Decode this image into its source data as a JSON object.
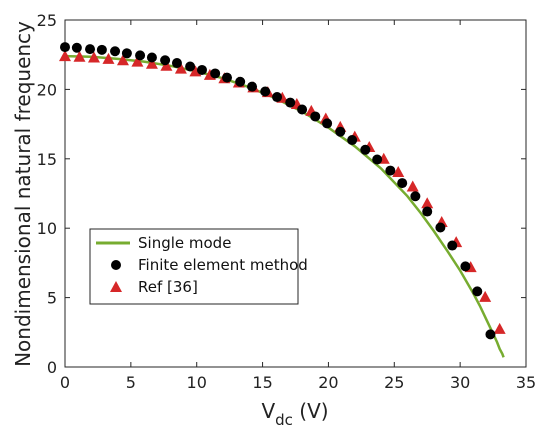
{
  "chart_data": {
    "type": "line",
    "xlabel": "V",
    "xlabel_sub": "dc",
    "xlabel_unit": " (V)",
    "ylabel": "Nondimensional natural frequency",
    "xlim": [
      0,
      35
    ],
    "ylim": [
      0,
      25
    ],
    "xticks": [
      0,
      5,
      10,
      15,
      20,
      25,
      30,
      35
    ],
    "yticks": [
      0,
      5,
      10,
      15,
      20,
      25
    ],
    "grid": false,
    "legend_position": "lower-left",
    "colors": {
      "single_mode": "#77AC30",
      "fem": "#000000",
      "ref": "#D62728"
    },
    "series": [
      {
        "name": "Single mode",
        "style": "line",
        "x": [
          0,
          2,
          4,
          6,
          8,
          10,
          12,
          14,
          16,
          18,
          20,
          22,
          24,
          26,
          27,
          28,
          29,
          30,
          31,
          31.5,
          32,
          32.5,
          32.8,
          33.0,
          33.2,
          33.3
        ],
        "y": [
          22.4,
          22.35,
          22.2,
          22.0,
          21.7,
          21.3,
          20.8,
          20.15,
          19.35,
          18.4,
          17.25,
          15.9,
          14.3,
          12.3,
          11.1,
          9.8,
          8.4,
          6.95,
          5.3,
          4.4,
          3.4,
          2.4,
          1.8,
          1.3,
          0.95,
          0.7
        ]
      },
      {
        "name": "Finite element method",
        "style": "circle",
        "x": [
          0,
          0.9,
          1.9,
          2.8,
          3.8,
          4.7,
          5.7,
          6.6,
          7.6,
          8.5,
          9.5,
          10.4,
          11.4,
          12.3,
          13.3,
          14.2,
          15.2,
          16.1,
          17.1,
          18.0,
          19.0,
          19.9,
          20.9,
          21.8,
          22.8,
          23.7,
          24.7,
          25.6,
          26.6,
          27.5,
          28.5,
          29.4,
          30.4,
          31.3,
          32.3
        ],
        "y": [
          23.05,
          23.0,
          22.9,
          22.85,
          22.75,
          22.6,
          22.45,
          22.3,
          22.1,
          21.9,
          21.65,
          21.4,
          21.15,
          20.85,
          20.55,
          20.2,
          19.85,
          19.45,
          19.05,
          18.55,
          18.05,
          17.55,
          16.95,
          16.35,
          15.65,
          14.95,
          14.15,
          13.25,
          12.3,
          11.2,
          10.05,
          8.75,
          7.25,
          5.45,
          2.35
        ]
      },
      {
        "name": "Ref [36]",
        "style": "triangle",
        "x": [
          0,
          1.1,
          2.2,
          3.3,
          4.4,
          5.5,
          6.6,
          7.7,
          8.8,
          9.9,
          11.0,
          12.1,
          13.2,
          14.3,
          15.4,
          16.5,
          17.6,
          18.7,
          19.8,
          20.9,
          22.0,
          23.1,
          24.2,
          25.3,
          26.4,
          27.5,
          28.6,
          29.7,
          30.8,
          31.9,
          33.0
        ],
        "y": [
          22.4,
          22.35,
          22.3,
          22.2,
          22.1,
          22.0,
          21.85,
          21.7,
          21.5,
          21.3,
          21.05,
          20.8,
          20.5,
          20.15,
          19.8,
          19.4,
          18.95,
          18.45,
          17.9,
          17.3,
          16.6,
          15.85,
          15.0,
          14.05,
          13.0,
          11.8,
          10.45,
          9.0,
          7.2,
          5.05,
          2.75
        ]
      }
    ]
  }
}
